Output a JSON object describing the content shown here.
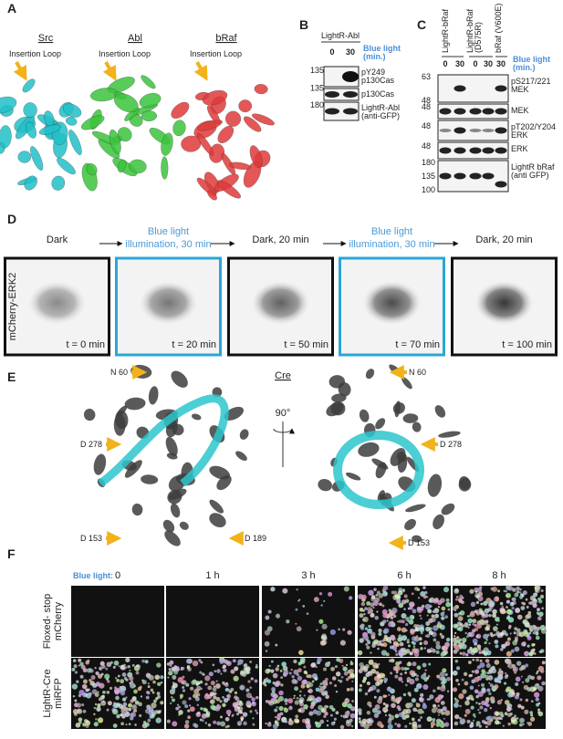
{
  "panel_a": {
    "label": "A",
    "proteins": [
      "Src",
      "Abl",
      "bRaf"
    ],
    "loop_labels": [
      "Insertion Loop",
      "Insertion Loop",
      "Insertion Loop"
    ]
  },
  "panel_b": {
    "label": "B",
    "construct": "LightR-Abl",
    "lanes": [
      "0",
      "30"
    ],
    "light_label": [
      "Blue light",
      "(min.)"
    ],
    "blots": [
      {
        "markers": [
          "135"
        ],
        "name": [
          "pY249",
          "p130Cas"
        ]
      },
      {
        "markers": [
          "135"
        ],
        "name": [
          "p130Cas"
        ]
      },
      {
        "markers": [
          "180"
        ],
        "name": [
          "LightR-Abl",
          "(anti-GFP)"
        ]
      }
    ]
  },
  "panel_c": {
    "label": "C",
    "constructs": [
      [
        "LightR-bRaf"
      ],
      [
        "LightR-bRaf",
        "(D575R)"
      ],
      [
        "bRaf (V600E)"
      ]
    ],
    "lanes": [
      "0",
      "30",
      "0",
      "30",
      "30"
    ],
    "light_label": [
      "Blue light",
      "(min.)"
    ],
    "blots": [
      {
        "markers": [
          "63",
          "48"
        ],
        "name": [
          "pS217/221",
          "MEK"
        ]
      },
      {
        "markers": [
          "48"
        ],
        "name": [
          "MEK"
        ]
      },
      {
        "markers": [
          "48"
        ],
        "name": [
          "pT202/Y204",
          "ERK"
        ]
      },
      {
        "markers": [
          "48"
        ],
        "name": [
          "ERK"
        ]
      },
      {
        "markers": [
          "180",
          "135",
          "100"
        ],
        "name": [
          "LightR bRaf",
          "(anti GFP)"
        ]
      }
    ]
  },
  "panel_d": {
    "label": "D",
    "row_label": "mCherry-ERK2",
    "steps": [
      [
        "Dark"
      ],
      [
        "Blue light",
        "illumination, 30 min"
      ],
      [
        "Dark, 20 min"
      ],
      [
        "Blue light",
        "illumination, 30 min"
      ],
      [
        "Dark, 20 min"
      ]
    ],
    "times": [
      "t = 0 min",
      "t = 20 min",
      "t = 50 min",
      "t = 70 min",
      "t = 100 min"
    ]
  },
  "panel_e": {
    "label": "E",
    "protein": "Cre",
    "rotation": "90°",
    "left_labels": [
      "N 60",
      "D 278",
      "D 153",
      "D 189"
    ],
    "right_labels": [
      "N 60",
      "D 278",
      "D 153"
    ]
  },
  "panel_f": {
    "label": "F",
    "light_label": "Blue light:",
    "times": [
      "0",
      "1 h",
      "3 h",
      "6 h",
      "8 h"
    ],
    "rows": [
      [
        "Floxed- stop",
        "mCherry"
      ],
      [
        "LightR-Cre",
        "miRFP"
      ]
    ]
  }
}
